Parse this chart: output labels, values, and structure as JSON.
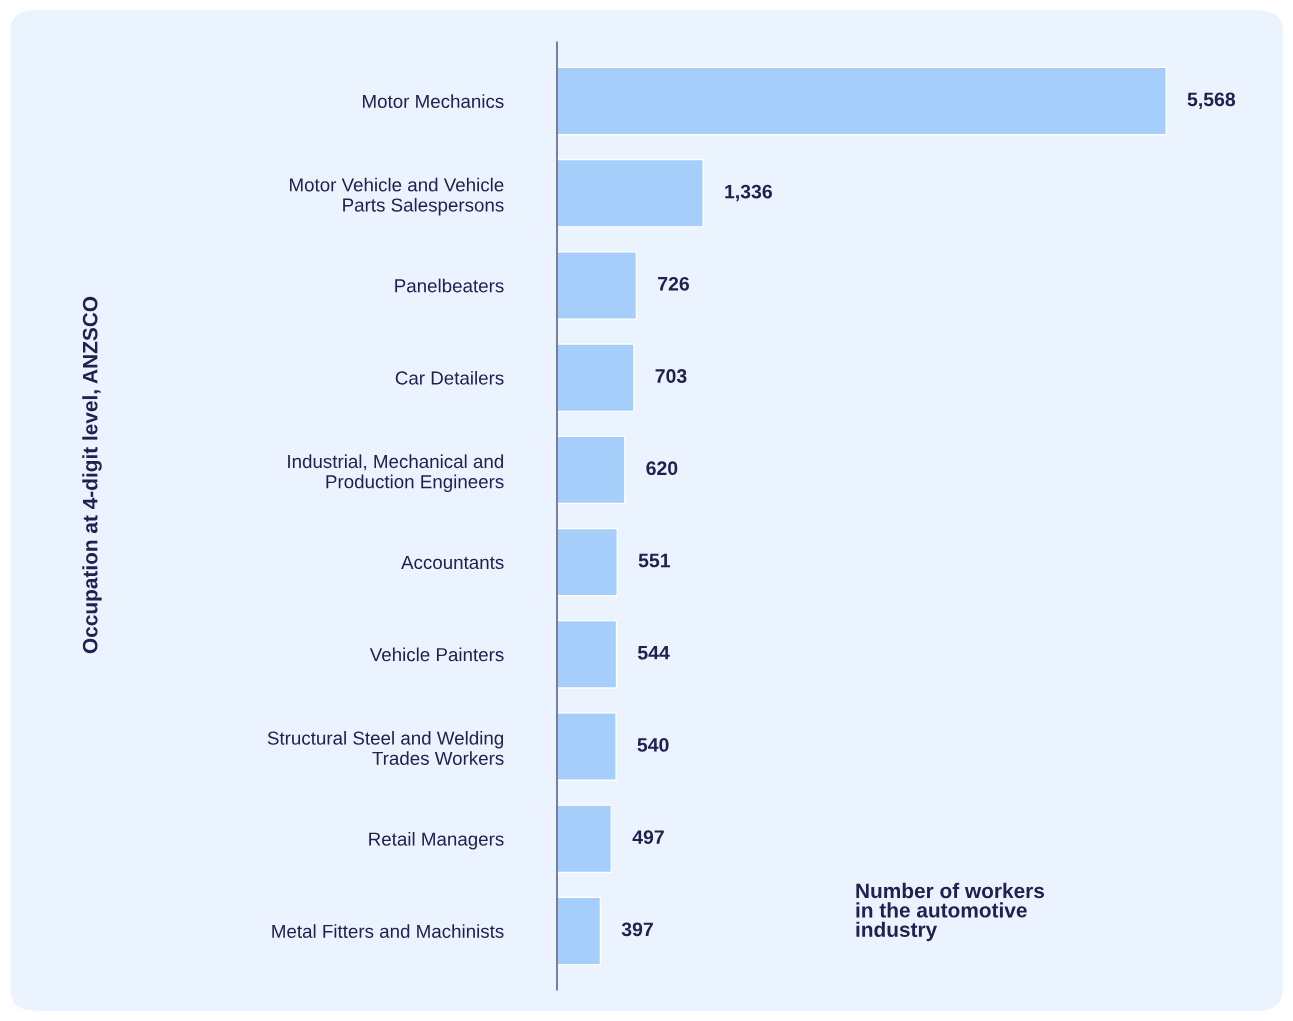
{
  "chart_data": {
    "type": "bar",
    "orientation": "horizontal",
    "categories": [
      "Motor Mechanics",
      "Motor Vehicle and Vehicle\nParts Salespersons",
      "Panelbeaters",
      "Car Detailers",
      "Industrial, Mechanical and\nProduction Engineers",
      "Accountants",
      "Vehicle Painters",
      "Structural Steel and Welding\nTrades Workers",
      "Retail Managers",
      "Metal Fitters and Machinists"
    ],
    "values": [
      5568,
      1336,
      726,
      703,
      620,
      551,
      544,
      540,
      497,
      397
    ],
    "value_labels": [
      "5,568",
      "1,336",
      "726",
      "703",
      "620",
      "551",
      "544",
      "540",
      "497",
      "397"
    ],
    "color": "#a6cefa",
    "annotations": [
      "Occupation at 4-digit level, ANZSCO"
    ],
    "xlabel": "Number of workers\nin the automotive\nindustry",
    "grid": false,
    "legend": false
  }
}
